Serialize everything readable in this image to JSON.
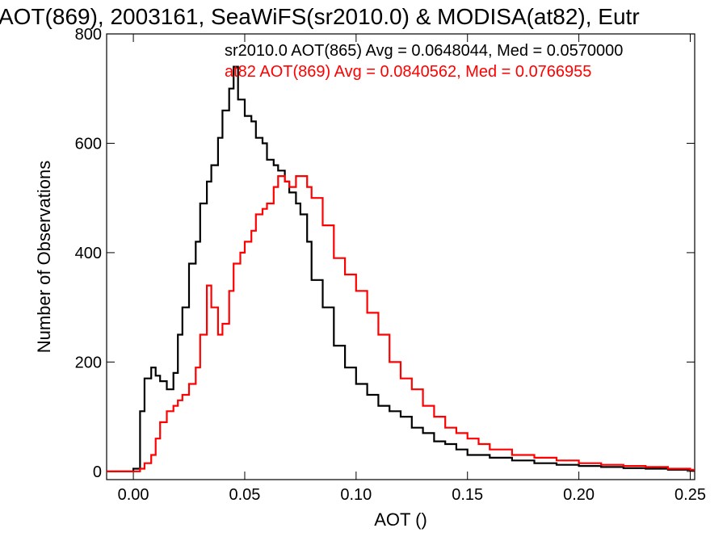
{
  "chart_data": {
    "type": "line",
    "title": "AOT(869), 2003161, SeaWiFS(sr2010.0) & MODISA(at82), Eutr",
    "xlabel": "AOT ()",
    "ylabel": "Number of Observations",
    "xlim": [
      -0.012,
      0.252
    ],
    "ylim": [
      -15,
      800
    ],
    "xticks": [
      0.0,
      0.05,
      0.1,
      0.15,
      0.2,
      0.25
    ],
    "xtick_labels": [
      "0.00",
      "0.05",
      "0.10",
      "0.15",
      "0.20",
      "0.25"
    ],
    "yticks": [
      0,
      200,
      400,
      600,
      800
    ],
    "ytick_labels": [
      "0",
      "200",
      "400",
      "600",
      "800"
    ],
    "grid": false,
    "legend_position": "top-right",
    "series": [
      {
        "label": "sr2010.0 AOT(865) Avg = 0.0648044, Med = 0.0570000",
        "color": "#000000",
        "x": [
          -0.012,
          -0.005,
          0.0,
          0.003,
          0.005,
          0.008,
          0.01,
          0.012,
          0.015,
          0.018,
          0.02,
          0.022,
          0.025,
          0.028,
          0.03,
          0.033,
          0.035,
          0.038,
          0.04,
          0.043,
          0.045,
          0.047,
          0.05,
          0.053,
          0.055,
          0.058,
          0.06,
          0.063,
          0.065,
          0.068,
          0.07,
          0.073,
          0.075,
          0.078,
          0.08,
          0.085,
          0.09,
          0.095,
          0.1,
          0.105,
          0.11,
          0.115,
          0.12,
          0.125,
          0.13,
          0.135,
          0.14,
          0.145,
          0.15,
          0.155,
          0.16,
          0.17,
          0.18,
          0.19,
          0.2,
          0.21,
          0.22,
          0.23,
          0.24,
          0.25
        ],
        "y": [
          0,
          0,
          5,
          110,
          170,
          190,
          175,
          165,
          150,
          180,
          250,
          300,
          380,
          420,
          490,
          530,
          560,
          610,
          660,
          700,
          740,
          680,
          650,
          640,
          610,
          600,
          570,
          560,
          550,
          530,
          510,
          490,
          470,
          420,
          350,
          300,
          230,
          190,
          160,
          140,
          120,
          110,
          100,
          80,
          70,
          55,
          50,
          40,
          30,
          30,
          25,
          20,
          15,
          12,
          10,
          8,
          6,
          5,
          3,
          2
        ]
      },
      {
        "label": "at82 AOT(869) Avg = 0.0840562, Med = 0.0766955",
        "color": "#ff0000",
        "x": [
          -0.012,
          0.003,
          0.005,
          0.008,
          0.01,
          0.012,
          0.015,
          0.018,
          0.02,
          0.022,
          0.025,
          0.028,
          0.03,
          0.033,
          0.035,
          0.038,
          0.04,
          0.043,
          0.045,
          0.048,
          0.05,
          0.053,
          0.055,
          0.058,
          0.06,
          0.063,
          0.065,
          0.068,
          0.07,
          0.073,
          0.075,
          0.078,
          0.08,
          0.085,
          0.09,
          0.095,
          0.1,
          0.105,
          0.11,
          0.115,
          0.12,
          0.125,
          0.13,
          0.135,
          0.14,
          0.145,
          0.15,
          0.155,
          0.16,
          0.17,
          0.18,
          0.19,
          0.2,
          0.21,
          0.22,
          0.23,
          0.24,
          0.25
        ],
        "y": [
          0,
          5,
          15,
          30,
          60,
          90,
          110,
          120,
          130,
          140,
          160,
          190,
          250,
          340,
          300,
          250,
          270,
          330,
          380,
          400,
          420,
          440,
          470,
          480,
          490,
          520,
          540,
          530,
          520,
          540,
          540,
          520,
          500,
          450,
          390,
          360,
          330,
          290,
          250,
          200,
          170,
          150,
          120,
          100,
          80,
          70,
          60,
          50,
          40,
          30,
          25,
          20,
          15,
          12,
          10,
          8,
          5,
          3
        ]
      }
    ]
  }
}
